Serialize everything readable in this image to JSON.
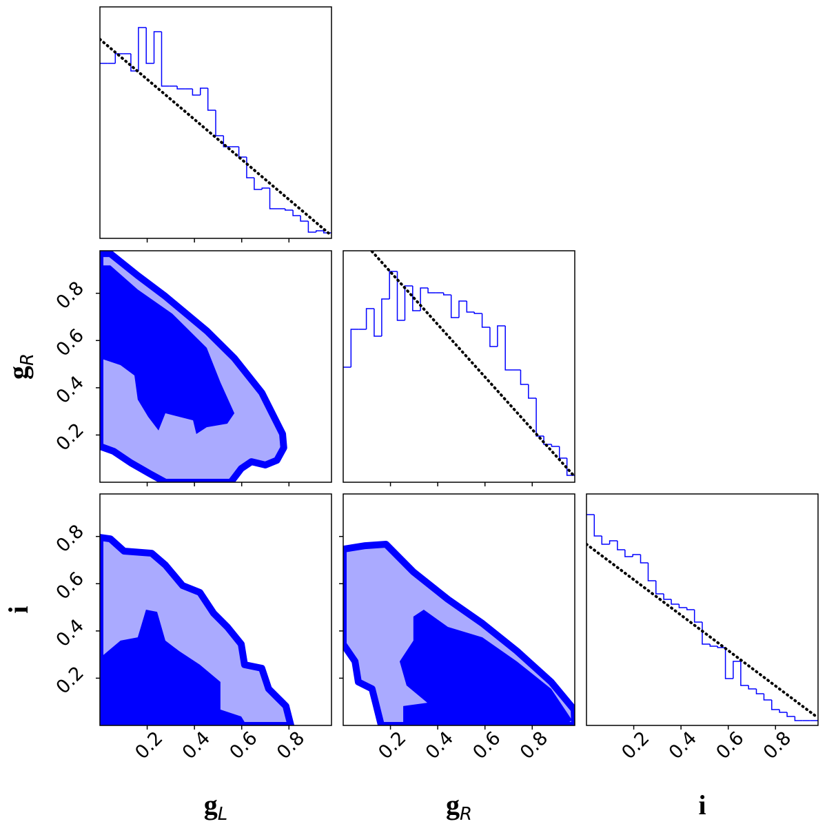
{
  "chart_data": [
    {
      "type": "histogram",
      "color": "#0000ff",
      "line_width": 1.5,
      "bins": [
        0,
        0.033,
        0.065,
        0.098,
        0.131,
        0.163,
        0.196,
        0.229,
        0.261,
        0.294,
        0.327,
        0.359,
        0.392,
        0.425,
        0.457,
        0.49,
        0.523,
        0.555,
        0.588,
        0.621,
        0.653,
        0.686,
        0.719,
        0.751,
        0.784,
        0.817,
        0.849,
        0.882,
        0.915,
        0.947,
        0.98
      ],
      "values": [
        254,
        254,
        268,
        268,
        243,
        306,
        254,
        300,
        221,
        221,
        217,
        217,
        208,
        218,
        186,
        149,
        133,
        133,
        118,
        88,
        71,
        73,
        43,
        43,
        41,
        33,
        25,
        9,
        11,
        8
      ],
      "prior": {
        "x": [
          0,
          0.98
        ],
        "y": [
          289,
          4
        ],
        "color": "#000000"
      },
      "xlim": [
        0,
        0.98
      ],
      "ylim": [
        0,
        336
      ],
      "xticks": [
        0.2,
        0.4,
        0.6,
        0.8
      ]
    },
    {
      "type": "contour",
      "contours": [
        {
          "fill": "#aaaaff",
          "edge": "#0000ff",
          "x": [
            0,
            0.044,
            0.16,
            0.277,
            0.452,
            0.569,
            0.685,
            0.773,
            0.778,
            0.749,
            0.7,
            0.641,
            0.598,
            0.554,
            0.277,
            0.213,
            0.131,
            0.058,
            0
          ],
          "y": [
            0.968,
            0.968,
            0.875,
            0.787,
            0.641,
            0.525,
            0.379,
            0.204,
            0.146,
            0.093,
            0.073,
            0.087,
            0.058,
            0,
            0,
            0.035,
            0.082,
            0.131,
            0.152
          ]
        },
        {
          "fill": "#0000ff",
          "x": [
            0,
            0.044,
            0.16,
            0.306,
            0.452,
            0.51,
            0.569,
            0.539,
            0.452,
            0.408,
            0.394,
            0.277,
            0.248,
            0.204,
            0.16,
            0.146,
            0.087,
            0
          ],
          "y": [
            0.918,
            0.918,
            0.816,
            0.714,
            0.569,
            0.423,
            0.292,
            0.248,
            0.233,
            0.204,
            0.262,
            0.292,
            0.219,
            0.277,
            0.35,
            0.452,
            0.496,
            0.525
          ]
        }
      ],
      "xlim": [
        0,
        0.98
      ],
      "ylim": [
        0,
        0.98
      ],
      "xticks": [
        0.2,
        0.4,
        0.6,
        0.8
      ],
      "yticks": [
        0.2,
        0.4,
        0.6,
        0.8
      ],
      "ylabel": {
        "symbol": "g",
        "subscript": "R"
      }
    },
    {
      "type": "histogram",
      "color": "#0000ff",
      "line_width": 1.5,
      "bins": [
        0,
        0.033,
        0.065,
        0.098,
        0.131,
        0.163,
        0.196,
        0.229,
        0.261,
        0.294,
        0.327,
        0.359,
        0.392,
        0.425,
        0.457,
        0.49,
        0.523,
        0.555,
        0.588,
        0.621,
        0.653,
        0.686,
        0.719,
        0.751,
        0.784,
        0.817,
        0.849,
        0.882,
        0.915,
        0.947,
        0.98
      ],
      "values": [
        167,
        222,
        222,
        252,
        212,
        266,
        306,
        235,
        285,
        249,
        282,
        275,
        275,
        272,
        239,
        263,
        247,
        245,
        225,
        197,
        227,
        163,
        163,
        142,
        122,
        67,
        55,
        52,
        35,
        10
      ],
      "prior": {
        "x": [
          0.122,
          0.98
        ],
        "y": [
          335,
          8
        ],
        "color": "#000000"
      },
      "xlim": [
        0,
        0.98
      ],
      "ylim": [
        0,
        336
      ],
      "xticks": [
        0.2,
        0.4,
        0.6,
        0.8
      ]
    },
    {
      "type": "contour",
      "contours": [
        {
          "fill": "#aaaaff",
          "edge": "#0000ff",
          "x": [
            0,
            0.044,
            0.102,
            0.219,
            0.277,
            0.35,
            0.423,
            0.481,
            0.539,
            0.598,
            0.612,
            0.685,
            0.714,
            0.787,
            0.808,
            0
          ],
          "y": [
            0.796,
            0.79,
            0.738,
            0.729,
            0.679,
            0.592,
            0.563,
            0.475,
            0.417,
            0.344,
            0.257,
            0.242,
            0.155,
            0.082,
            0,
            0
          ]
        },
        {
          "fill": "#0000ff",
          "x": [
            0,
            0.087,
            0.16,
            0.195,
            0.242,
            0.277,
            0.335,
            0.423,
            0.51,
            0.51,
            0.598,
            0.621,
            0
          ],
          "y": [
            0.286,
            0.359,
            0.373,
            0.49,
            0.481,
            0.359,
            0.315,
            0.257,
            0.184,
            0.067,
            0.038,
            0,
            0
          ]
        }
      ],
      "xlim": [
        0,
        0.98
      ],
      "ylim": [
        0,
        0.98
      ],
      "xticks": [
        0.2,
        0.4,
        0.6,
        0.8
      ],
      "yticks": [
        0.2,
        0.4,
        0.6,
        0.8
      ],
      "xlabel": {
        "symbol": "g",
        "subscript": "L"
      },
      "ylabel": {
        "symbol": "i"
      }
    },
    {
      "type": "contour",
      "contours": [
        {
          "fill": "#aaaaff",
          "edge": "#0000ff",
          "x": [
            0,
            0.093,
            0.181,
            0.297,
            0.443,
            0.589,
            0.735,
            0.88,
            0.977,
            0.98,
            0.161,
            0.137,
            0.122,
            0.064,
            0.05,
            0
          ],
          "y": [
            0.746,
            0.761,
            0.767,
            0.65,
            0.534,
            0.432,
            0.315,
            0.184,
            0.067,
            0,
            0,
            0.096,
            0.155,
            0.184,
            0.271,
            0.344
          ]
        },
        {
          "fill": "#0000ff",
          "x": [
            0.297,
            0.341,
            0.443,
            0.589,
            0.735,
            0.88,
            0.968,
            0.939,
            0.254,
            0.254,
            0.356,
            0.268,
            0.239,
            0.297
          ],
          "y": [
            0.461,
            0.49,
            0.417,
            0.373,
            0.271,
            0.155,
            0.023,
            0,
            0,
            0.082,
            0.096,
            0.169,
            0.271,
            0.359
          ]
        }
      ],
      "xlim": [
        0,
        0.98
      ],
      "ylim": [
        0,
        0.98
      ],
      "xticks": [
        0.2,
        0.4,
        0.6,
        0.8
      ],
      "yticks": [
        0.2,
        0.4,
        0.6,
        0.8
      ],
      "xlabel": {
        "symbol": "g",
        "subscript": "R"
      }
    },
    {
      "type": "histogram",
      "color": "#0000ff",
      "line_width": 1.5,
      "bins": [
        0,
        0.033,
        0.065,
        0.098,
        0.131,
        0.163,
        0.196,
        0.229,
        0.261,
        0.294,
        0.327,
        0.359,
        0.392,
        0.425,
        0.457,
        0.49,
        0.523,
        0.555,
        0.588,
        0.621,
        0.653,
        0.686,
        0.719,
        0.751,
        0.784,
        0.817,
        0.849,
        0.882,
        0.915,
        0.947,
        0.98
      ],
      "values": [
        306,
        275,
        263,
        268,
        255,
        245,
        248,
        236,
        210,
        191,
        183,
        176,
        171,
        168,
        150,
        118,
        115,
        113,
        68,
        93,
        58,
        53,
        46,
        37,
        23,
        19,
        13,
        7,
        7,
        7
      ],
      "prior": {
        "x": [
          0,
          0.98
        ],
        "y": [
          263,
          11
        ],
        "color": "#000000"
      },
      "xlim": [
        0,
        0.98
      ],
      "ylim": [
        0,
        336
      ],
      "xticks": [
        0.2,
        0.4,
        0.6,
        0.8
      ],
      "xlabel": {
        "symbol": "i"
      }
    }
  ]
}
